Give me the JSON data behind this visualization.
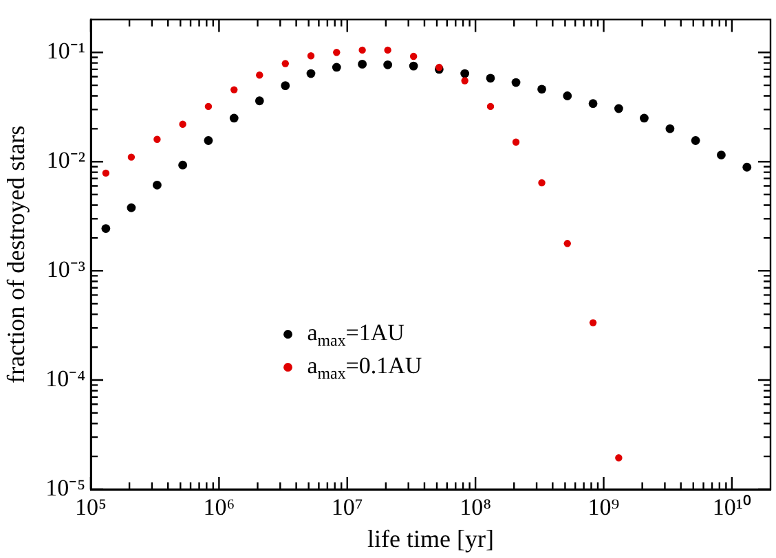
{
  "chart_data": {
    "type": "scatter",
    "xlabel": "life time [yr]",
    "ylabel": "fraction of destroyed stars",
    "log": "xy",
    "grid": false,
    "legend": "center",
    "marker": "circle",
    "xlim": [
      100000,
      20000000000
    ],
    "ylim": [
      1e-05,
      0.2
    ],
    "xticks": [
      {
        "value": 100000,
        "label": "10⁵"
      },
      {
        "value": 200000,
        "label": null
      },
      {
        "value": 300000,
        "label": null
      },
      {
        "value": 400000,
        "label": null
      },
      {
        "value": 500000,
        "label": null
      },
      {
        "value": 600000,
        "label": null
      },
      {
        "value": 700000,
        "label": null
      },
      {
        "value": 800000,
        "label": null
      },
      {
        "value": 900000,
        "label": null
      },
      {
        "value": 1000000,
        "label": "10⁶"
      },
      {
        "value": 2000000,
        "label": null
      },
      {
        "value": 3000000,
        "label": null
      },
      {
        "value": 4000000,
        "label": null
      },
      {
        "value": 5000000,
        "label": null
      },
      {
        "value": 6000000,
        "label": null
      },
      {
        "value": 7000000,
        "label": null
      },
      {
        "value": 8000000,
        "label": null
      },
      {
        "value": 9000000,
        "label": null
      },
      {
        "value": 10000000,
        "label": "10⁷"
      },
      {
        "value": 20000000,
        "label": null
      },
      {
        "value": 30000000,
        "label": null
      },
      {
        "value": 40000000,
        "label": null
      },
      {
        "value": 50000000,
        "label": null
      },
      {
        "value": 60000000,
        "label": null
      },
      {
        "value": 70000000,
        "label": null
      },
      {
        "value": 80000000,
        "label": null
      },
      {
        "value": 90000000,
        "label": null
      },
      {
        "value": 100000000,
        "label": "10⁸"
      },
      {
        "value": 200000000,
        "label": null
      },
      {
        "value": 300000000,
        "label": null
      },
      {
        "value": 400000000,
        "label": null
      },
      {
        "value": 500000000,
        "label": null
      },
      {
        "value": 600000000,
        "label": null
      },
      {
        "value": 700000000,
        "label": null
      },
      {
        "value": 800000000,
        "label": null
      },
      {
        "value": 900000000,
        "label": null
      },
      {
        "value": 1000000000,
        "label": "10⁹"
      },
      {
        "value": 2000000000,
        "label": null
      },
      {
        "value": 3000000000,
        "label": null
      },
      {
        "value": 4000000000,
        "label": null
      },
      {
        "value": 5000000000,
        "label": null
      },
      {
        "value": 6000000000,
        "label": null
      },
      {
        "value": 7000000000,
        "label": null
      },
      {
        "value": 8000000000,
        "label": null
      },
      {
        "value": 9000000000,
        "label": null
      },
      {
        "value": 10000000000,
        "label": "10¹⁰"
      }
    ],
    "yticks": [
      {
        "value": 1e-05,
        "label": "10⁻⁵"
      },
      {
        "value": 2e-05,
        "label": null
      },
      {
        "value": 3e-05,
        "label": null
      },
      {
        "value": 4e-05,
        "label": null
      },
      {
        "value": 5e-05,
        "label": null
      },
      {
        "value": 6e-05,
        "label": null
      },
      {
        "value": 7e-05,
        "label": null
      },
      {
        "value": 8e-05,
        "label": null
      },
      {
        "value": 9e-05,
        "label": null
      },
      {
        "value": 0.0001,
        "label": "10⁻⁴"
      },
      {
        "value": 0.0002,
        "label": null
      },
      {
        "value": 0.0003,
        "label": null
      },
      {
        "value": 0.0004,
        "label": null
      },
      {
        "value": 0.0005,
        "label": null
      },
      {
        "value": 0.0006,
        "label": null
      },
      {
        "value": 0.0007,
        "label": null
      },
      {
        "value": 0.0008,
        "label": null
      },
      {
        "value": 0.0009,
        "label": null
      },
      {
        "value": 0.001,
        "label": "10⁻³"
      },
      {
        "value": 0.002,
        "label": null
      },
      {
        "value": 0.003,
        "label": null
      },
      {
        "value": 0.004,
        "label": null
      },
      {
        "value": 0.005,
        "label": null
      },
      {
        "value": 0.006,
        "label": null
      },
      {
        "value": 0.007,
        "label": null
      },
      {
        "value": 0.008,
        "label": null
      },
      {
        "value": 0.009,
        "label": null
      },
      {
        "value": 0.01,
        "label": "10⁻²"
      },
      {
        "value": 0.02,
        "label": null
      },
      {
        "value": 0.03,
        "label": null
      },
      {
        "value": 0.04,
        "label": null
      },
      {
        "value": 0.05,
        "label": null
      },
      {
        "value": 0.06,
        "label": null
      },
      {
        "value": 0.07,
        "label": null
      },
      {
        "value": 0.08,
        "label": null
      },
      {
        "value": 0.09,
        "label": null
      },
      {
        "value": 0.1,
        "label": "10⁻¹"
      }
    ],
    "series": [
      {
        "name": "a$_{max}$=1AU",
        "color": "#000000",
        "x": [
          131000,
          207000,
          329000,
          521000,
          826000,
          1310000,
          2070000,
          3290000,
          5210000,
          8260000,
          13100000,
          20700000,
          32900000,
          52100000,
          82600000,
          131000000,
          207000000,
          329000000,
          521000000,
          826000000,
          1310000000,
          2070000000,
          3290000000,
          5210000000,
          8260000000,
          13100000000
        ],
        "values": [
          0.00244,
          0.00378,
          0.0061,
          0.0093,
          0.0156,
          0.025,
          0.036,
          0.0496,
          0.064,
          0.073,
          0.078,
          0.077,
          0.075,
          0.07,
          0.064,
          0.058,
          0.053,
          0.046,
          0.04,
          0.034,
          0.0306,
          0.025,
          0.02,
          0.0156,
          0.0115,
          0.0089
        ]
      },
      {
        "name": "a$_{max}$=0.1AU",
        "color": "#e00000",
        "x": [
          131000,
          207000,
          329000,
          521000,
          826000,
          1310000,
          2070000,
          3290000,
          5210000,
          8260000,
          13100000,
          20700000,
          32900000,
          52100000,
          82600000,
          131000000,
          207000000,
          329000000,
          521000000,
          826000000,
          1310000000
        ],
        "values": [
          0.00785,
          0.011,
          0.016,
          0.022,
          0.032,
          0.0455,
          0.062,
          0.079,
          0.093,
          0.1,
          0.105,
          0.105,
          0.092,
          0.073,
          0.055,
          0.032,
          0.0151,
          0.0064,
          0.00178,
          0.000335,
          1.94e-05
        ]
      }
    ]
  }
}
